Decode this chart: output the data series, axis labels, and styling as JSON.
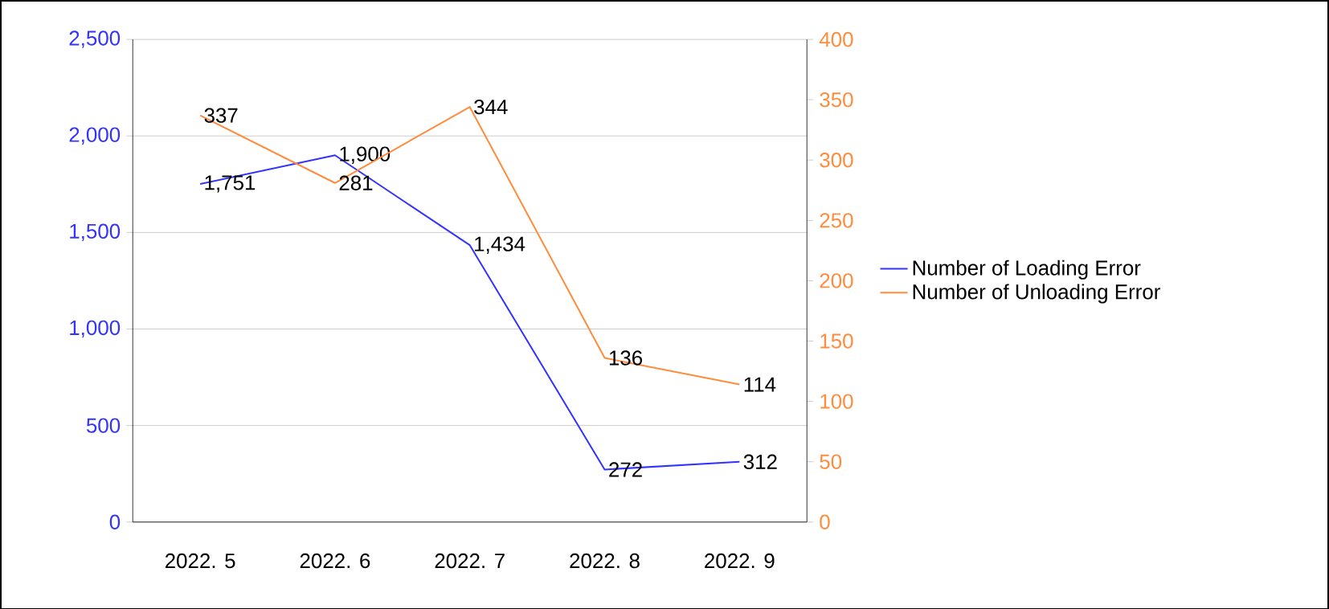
{
  "chart_data": {
    "type": "line",
    "categories": [
      "2022. 5",
      "2022. 6",
      "2022. 7",
      "2022. 8",
      "2022. 9"
    ],
    "series": [
      {
        "name": "Number of Loading Error",
        "color": "#3333ff",
        "values": [
          1751,
          1900,
          1434,
          272,
          312
        ],
        "value_labels": [
          "1,751",
          "1,900",
          "1,434",
          "272",
          "312"
        ]
      },
      {
        "name": "Number of Unloading Error",
        "color": "#ff8c3c",
        "axis": "y2",
        "values": [
          337,
          281,
          344,
          136,
          114
        ],
        "value_labels": [
          "337",
          "281",
          "344",
          "136",
          "114"
        ]
      }
    ],
    "ylim": [
      0,
      2500
    ],
    "yticks": [
      0,
      {
        "value": 500,
        "label": "500"
      },
      {
        "value": 1000,
        "label": "1,000"
      },
      {
        "value": 1500,
        "label": "1,500"
      },
      {
        "value": 2000,
        "label": "2,000"
      },
      {
        "value": 2500,
        "label": "2,500"
      }
    ],
    "y2lim": [
      0,
      400
    ],
    "y2ticks": [
      0,
      50,
      100,
      150,
      200,
      250,
      300,
      350,
      400
    ],
    "grid": "y",
    "legend": "right",
    "marker": "none",
    "line_style": "solid"
  }
}
